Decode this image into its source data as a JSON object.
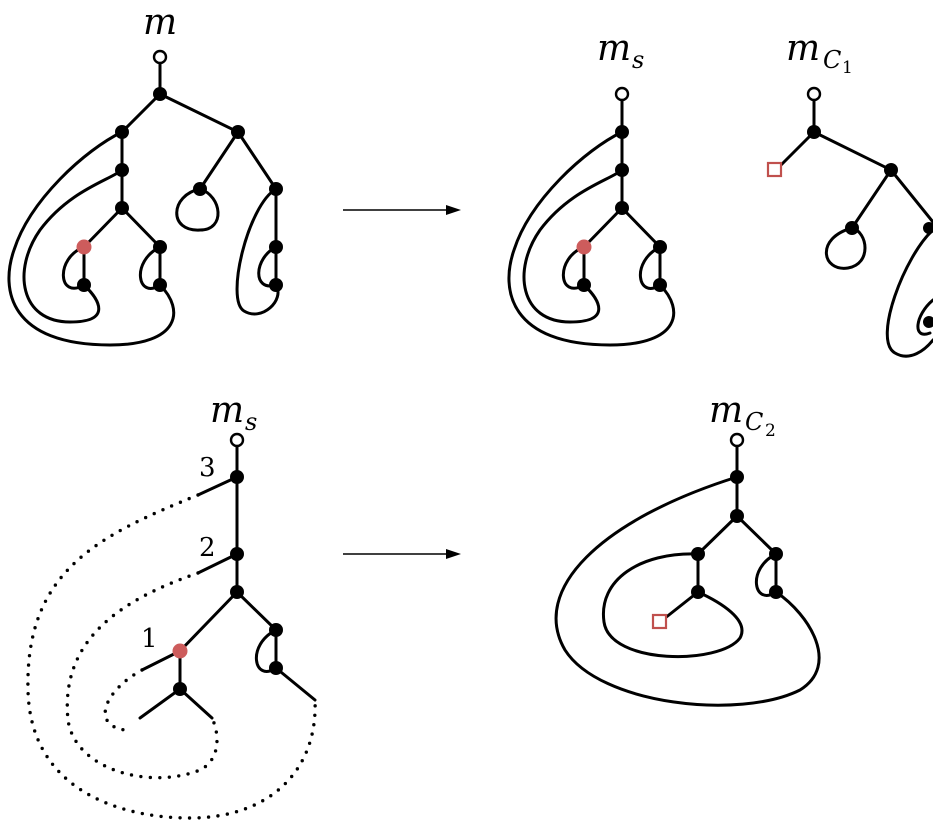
{
  "labels": {
    "m": "m",
    "ms_top": "m",
    "ms_top_sub": "s",
    "mc1": "m",
    "mc1_sub": "C",
    "mc1_subsub": "1",
    "ms_bottom": "m",
    "ms_bottom_sub": "s",
    "mc2": "m",
    "mc2_sub": "C",
    "mc2_subsub": "2"
  },
  "leg_numbers": {
    "n1": "1",
    "n2": "2",
    "n3": "3"
  },
  "colors": {
    "highlight_node": "#cd5c5c",
    "marker_square": "#c0504d",
    "ink": "#000000"
  }
}
